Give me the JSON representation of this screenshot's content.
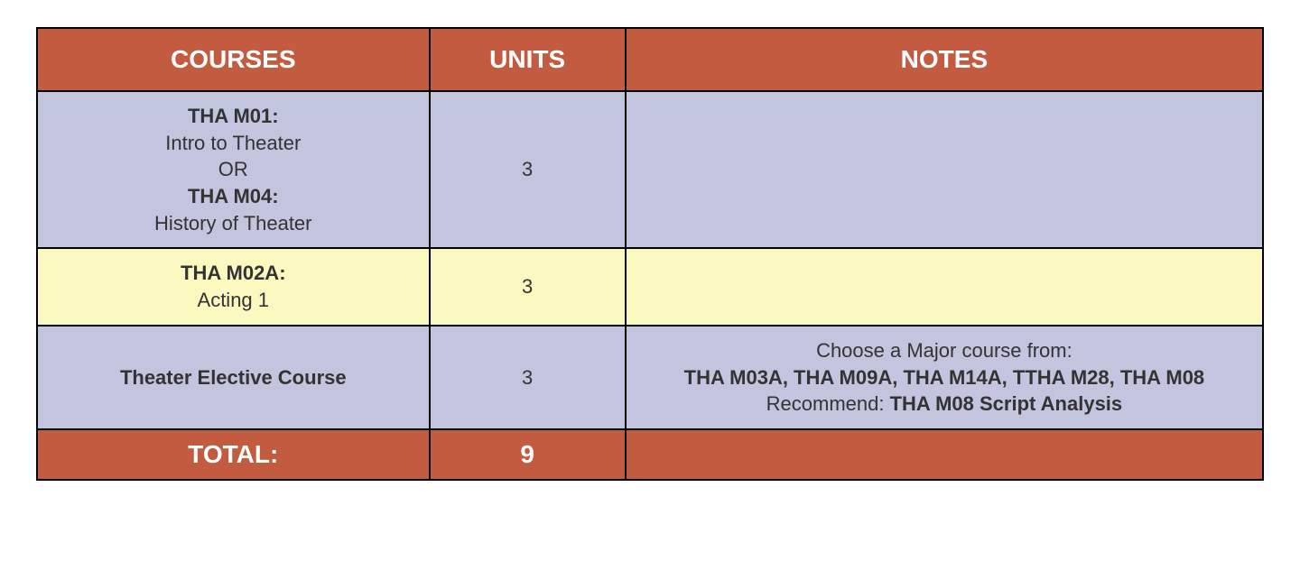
{
  "table": {
    "columns": [
      "COURSES",
      "UNITS",
      "NOTES"
    ],
    "col_widths_pct": [
      32,
      16,
      52
    ],
    "header_bg": "#c35b40",
    "header_fg": "#ffffff",
    "header_fontsize": 28,
    "body_fontsize": 22,
    "border_color": "#000000",
    "row_bg_lavender": "#c3c4dd",
    "row_bg_yellow": "#fbf8c0",
    "total_bg": "#c35b40",
    "total_fg": "#ffffff",
    "rows": [
      {
        "bg": "lavender",
        "course": {
          "code1": "THA M01:",
          "desc1": "Intro to Theater",
          "or": "OR",
          "code2": "THA M04:",
          "desc2": "History of Theater"
        },
        "units": "3",
        "notes": {
          "plain1": "",
          "bold1": "",
          "plain2": "",
          "bold2": ""
        }
      },
      {
        "bg": "yellow",
        "course": {
          "code1": "THA M02A:",
          "desc1": "Acting 1",
          "or": "",
          "code2": "",
          "desc2": ""
        },
        "units": "3",
        "notes": {
          "plain1": "",
          "bold1": "",
          "plain2": "",
          "bold2": ""
        }
      },
      {
        "bg": "lavender",
        "course": {
          "code1": "Theater Elective Course",
          "desc1": "",
          "or": "",
          "code2": "",
          "desc2": ""
        },
        "units": "3",
        "notes": {
          "plain1": "Choose a Major course from:",
          "bold1": "THA M03A, THA M09A, THA M14A, TTHA M28, THA M08",
          "plain2": "Recommend: ",
          "bold2": "THA M08 Script Analysis"
        }
      }
    ],
    "total": {
      "label": "TOTAL:",
      "units": "9",
      "notes": ""
    }
  }
}
